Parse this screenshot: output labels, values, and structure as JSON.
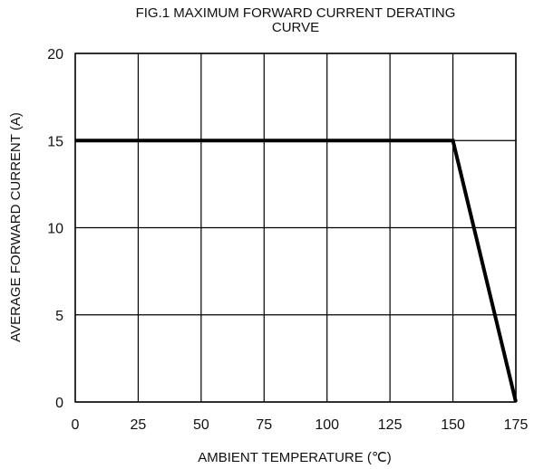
{
  "chart_data": {
    "type": "line",
    "title_lines": [
      "FIG.1 MAXIMUM FORWARD CURRENT DERATING",
      "CURVE"
    ],
    "xlabel": "AMBIENT TEMPERATURE (℃)",
    "ylabel": "AVERAGE FORWARD CURRENT (A)",
    "xlim": [
      0,
      175
    ],
    "ylim": [
      0,
      20
    ],
    "xticks": [
      0,
      25,
      50,
      75,
      100,
      125,
      150,
      175
    ],
    "yticks": [
      0,
      5,
      10,
      15,
      20
    ],
    "grid": true,
    "series": [
      {
        "x": [
          0,
          150,
          175
        ],
        "y": [
          15,
          15,
          0
        ]
      }
    ]
  },
  "colors": {
    "line": "#000000",
    "grid": "#000000",
    "text": "#111111"
  }
}
